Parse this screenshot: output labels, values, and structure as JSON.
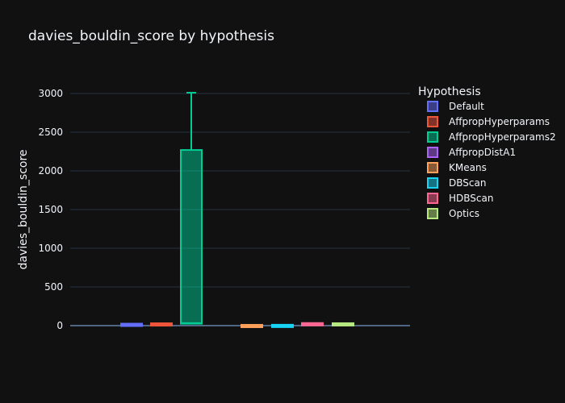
{
  "chart_data": {
    "type": "box",
    "title": "davies_bouldin_score by hypothesis",
    "xlabel": "",
    "ylabel": "davies_bouldin_score",
    "ylim": [
      -100,
      3200
    ],
    "yticks": [
      0,
      500,
      1000,
      1500,
      2000,
      2500,
      3000
    ],
    "grid": true,
    "legend": {
      "title": "Hypothesis",
      "placement": "right"
    },
    "series": [
      {
        "name": "Default",
        "color": "#636efa",
        "min": 5,
        "q1": 7,
        "median": 10,
        "q3": 18,
        "max": 20
      },
      {
        "name": "AffpropHyperparams",
        "color": "#EF553B",
        "min": 10,
        "q1": 12,
        "median": 15,
        "q3": 24,
        "max": 28
      },
      {
        "name": "AffpropHyperparams2",
        "color": "#00cc96",
        "min": 20,
        "q1": 25,
        "median": 32,
        "q3": 2270,
        "max": 3010
      },
      {
        "name": "AffpropDistA1",
        "color": "#ab63fa",
        "min": null,
        "q1": null,
        "median": null,
        "q3": null,
        "max": null
      },
      {
        "name": "KMeans",
        "color": "#FFA15A",
        "min": -8,
        "q1": -6,
        "median": -5,
        "q3": -3,
        "max": -2
      },
      {
        "name": "DBScan",
        "color": "#19d3f3",
        "min": -8,
        "q1": -6,
        "median": -4,
        "q3": -2,
        "max": -1
      },
      {
        "name": "HDBScan",
        "color": "#FF6692",
        "min": 10,
        "q1": 14,
        "median": 18,
        "q3": 24,
        "max": 27
      },
      {
        "name": "Optics",
        "color": "#B6E880",
        "min": 8,
        "q1": 12,
        "median": 16,
        "q3": 21,
        "max": 24
      }
    ]
  }
}
